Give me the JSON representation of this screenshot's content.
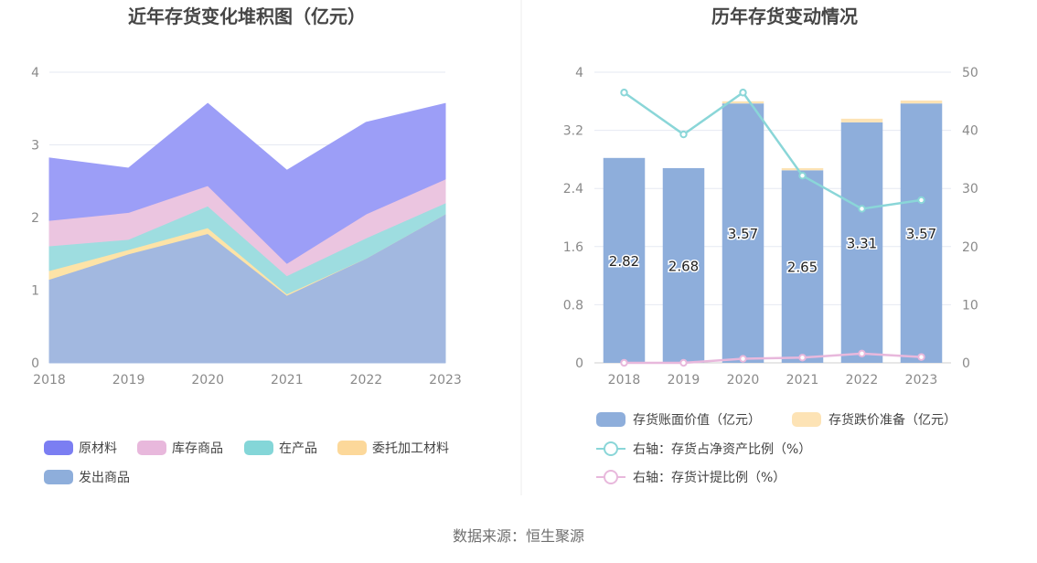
{
  "footer": {
    "source": "数据来源：恒生聚源"
  },
  "chart_data": [
    {
      "type": "area",
      "stacked": true,
      "title": "近年存货变化堆积图（亿元）",
      "categories": [
        "2018",
        "2019",
        "2020",
        "2021",
        "2022",
        "2023"
      ],
      "ylim": [
        0,
        4
      ],
      "yticks": [
        "0",
        "1",
        "2",
        "3",
        "4"
      ],
      "series": [
        {
          "name": "发出商品",
          "color": "#a2b8e0",
          "values": [
            1.15,
            1.5,
            1.78,
            0.93,
            1.44,
            2.05
          ]
        },
        {
          "name": "委托加工材料",
          "color": "#fde3a7",
          "values": [
            0.12,
            0.06,
            0.08,
            0.02,
            0.0,
            0.0
          ]
        },
        {
          "name": "在产品",
          "color": "#9edde0",
          "values": [
            0.34,
            0.14,
            0.3,
            0.25,
            0.28,
            0.15
          ]
        },
        {
          "name": "库存商品",
          "color": "#ebc5e0",
          "values": [
            0.35,
            0.37,
            0.28,
            0.17,
            0.33,
            0.33
          ]
        },
        {
          "name": "原材料",
          "color": "#9c9ef7",
          "values": [
            0.86,
            0.61,
            1.13,
            1.28,
            1.26,
            1.04
          ]
        }
      ],
      "legend": [
        {
          "name": "原材料",
          "color": "#7b7ef2"
        },
        {
          "name": "库存商品",
          "color": "#e8b8dc"
        },
        {
          "name": "在产品",
          "color": "#84d6d8"
        },
        {
          "name": "委托加工材料",
          "color": "#fcd89a"
        },
        {
          "name": "发出商品",
          "color": "#8eaedb"
        }
      ]
    },
    {
      "type": "bar+line",
      "title": "历年存货变动情况",
      "categories": [
        "2018",
        "2019",
        "2020",
        "2021",
        "2022",
        "2023"
      ],
      "ylim": [
        0,
        4
      ],
      "yticks": [
        "0",
        "0.8",
        "1.6",
        "2.4",
        "3.2",
        "4"
      ],
      "y2lim": [
        0,
        50
      ],
      "y2ticks": [
        "0",
        "10",
        "20",
        "30",
        "40",
        "50"
      ],
      "bars": {
        "book_value": {
          "name": "存货账面价值（亿元）",
          "color": "#8eaedb",
          "values": [
            2.82,
            2.68,
            3.57,
            2.65,
            3.31,
            3.57
          ],
          "labels": [
            "2.82",
            "2.68",
            "3.57",
            "2.65",
            "3.31",
            "3.57"
          ]
        },
        "impairment": {
          "name": "存货跌价准备（亿元）",
          "color": "#fde3b5",
          "values": [
            0.0,
            0.0,
            0.03,
            0.03,
            0.05,
            0.04
          ]
        }
      },
      "lines": [
        {
          "name": "右轴：存货占净资产比例（%）",
          "color": "#8ad6d8",
          "values": [
            46.5,
            39.3,
            46.5,
            32.2,
            26.5,
            28.0
          ]
        },
        {
          "name": "右轴：存货计提比例（%）",
          "color": "#e8b8dc",
          "values": [
            0.0,
            0.0,
            0.7,
            0.9,
            1.6,
            1.0
          ]
        }
      ]
    }
  ]
}
